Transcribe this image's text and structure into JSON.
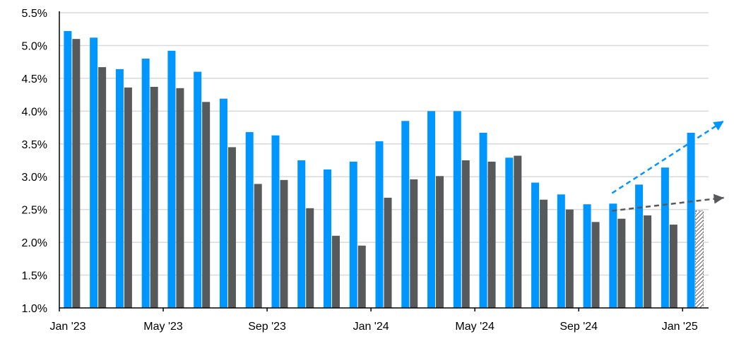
{
  "chart_data": {
    "type": "bar",
    "title": "",
    "xlabel": "",
    "ylabel": "",
    "ylim": [
      1.0,
      5.5
    ],
    "yticks": [
      "1.0%",
      "1.5%",
      "2.0%",
      "2.5%",
      "3.0%",
      "3.5%",
      "4.0%",
      "4.5%",
      "5.0%",
      "5.5%"
    ],
    "xtick_labels": [
      "Jan '23",
      "May '23",
      "Sep '23",
      "Jan '24",
      "May '24",
      "Sep '24",
      "Jan '25"
    ],
    "grid": "horizontal",
    "categories": [
      "Jan '23",
      "Feb '23",
      "Mar '23",
      "Apr '23",
      "May '23",
      "Jun '23",
      "Jul '23",
      "Aug '23",
      "Sep '23",
      "Oct '23",
      "Nov '23",
      "Dec '23",
      "Jan '24",
      "Feb '24",
      "Mar '24",
      "Apr '24",
      "May '24",
      "Jun '24",
      "Jul '24",
      "Aug '24",
      "Sep '24",
      "Oct '24",
      "Nov '24",
      "Dec '24",
      "Jan '25"
    ],
    "series": [
      {
        "color": "#0096ff",
        "values": [
          5.22,
          5.12,
          4.64,
          4.8,
          4.92,
          4.6,
          4.19,
          3.68,
          3.63,
          3.25,
          3.11,
          3.23,
          3.54,
          3.85,
          4.0,
          4.0,
          3.67,
          3.29,
          2.91,
          2.73,
          2.58,
          2.59,
          2.88,
          3.14,
          3.67
        ]
      },
      {
        "color": "#58595b",
        "values": [
          5.1,
          4.67,
          4.36,
          4.37,
          4.35,
          4.14,
          3.45,
          2.89,
          2.95,
          2.52,
          2.1,
          1.95,
          2.68,
          2.96,
          3.01,
          3.25,
          3.23,
          3.32,
          2.65,
          2.5,
          2.31,
          2.36,
          2.41,
          2.27,
          null
        ]
      }
    ],
    "estimate": {
      "category": "Jan '25",
      "series_index": 1,
      "value": 2.48,
      "pattern": "hatched"
    },
    "arrows": [
      {
        "color": "#0096ff",
        "style": "dashed",
        "from": [
          "Oct '24",
          2.75
        ],
        "to": [
          "Jan '25",
          3.85
        ]
      },
      {
        "color": "#58595b",
        "style": "dashed",
        "from": [
          "Oct '24",
          2.48
        ],
        "to": [
          "Jan '25",
          2.68
        ]
      }
    ]
  }
}
